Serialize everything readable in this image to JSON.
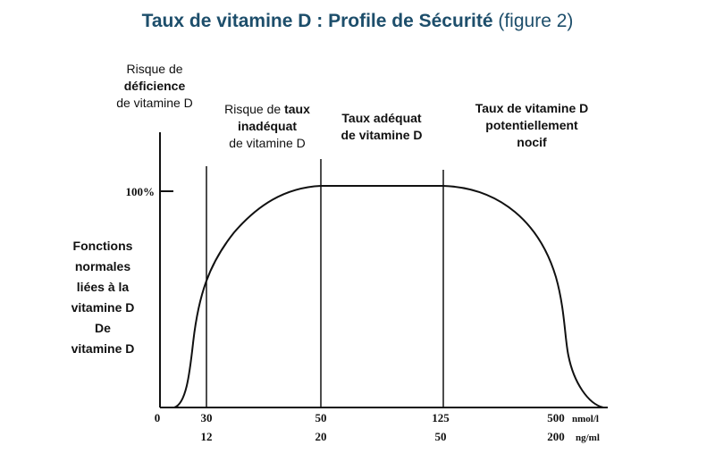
{
  "title": {
    "main": "Taux de vitamine D : Profile de Sécurité",
    "suffix": "(figure 2)",
    "color": "#1d4e6b"
  },
  "zones": [
    {
      "line1": "Risque de",
      "line2": "déficience",
      "line3": "de vitamine D"
    },
    {
      "line1a": "Risque de ",
      "line1b": "taux",
      "line2": "inadéquat",
      "line3": "de vitamine D"
    },
    {
      "line1": "Taux adéquat",
      "line2": "de vitamine D"
    },
    {
      "line1": "Taux de vitamine D",
      "line2": "potentiellement",
      "line3": "nocif"
    }
  ],
  "y_label_lines": [
    "Fonctions",
    "normales",
    "liées à la",
    "vitamine D",
    "De",
    "vitamine D"
  ],
  "chart_data": {
    "type": "line",
    "title": "Taux de vitamine D : Profile de Sécurité (figure 2)",
    "y_tick": {
      "label": "100%",
      "value": 100
    },
    "ylim": [
      0,
      100
    ],
    "x_axis_rows": [
      {
        "unit": "nmol/l",
        "ticks": [
          "0",
          "30",
          "50",
          "125",
          "500"
        ]
      },
      {
        "unit": "ng/ml",
        "ticks": [
          "12",
          "20",
          "50",
          "200"
        ]
      }
    ],
    "thresholds": [
      "30",
      "50",
      "125"
    ],
    "series": [
      {
        "points": [
          {
            "x": "0",
            "y": 0
          },
          {
            "x": "30",
            "y": 52
          },
          {
            "x": "50",
            "y": 100
          },
          {
            "x": "125",
            "y": 100
          },
          {
            "x": "500",
            "y": 0
          }
        ]
      }
    ],
    "grid": false,
    "legend": "none"
  }
}
